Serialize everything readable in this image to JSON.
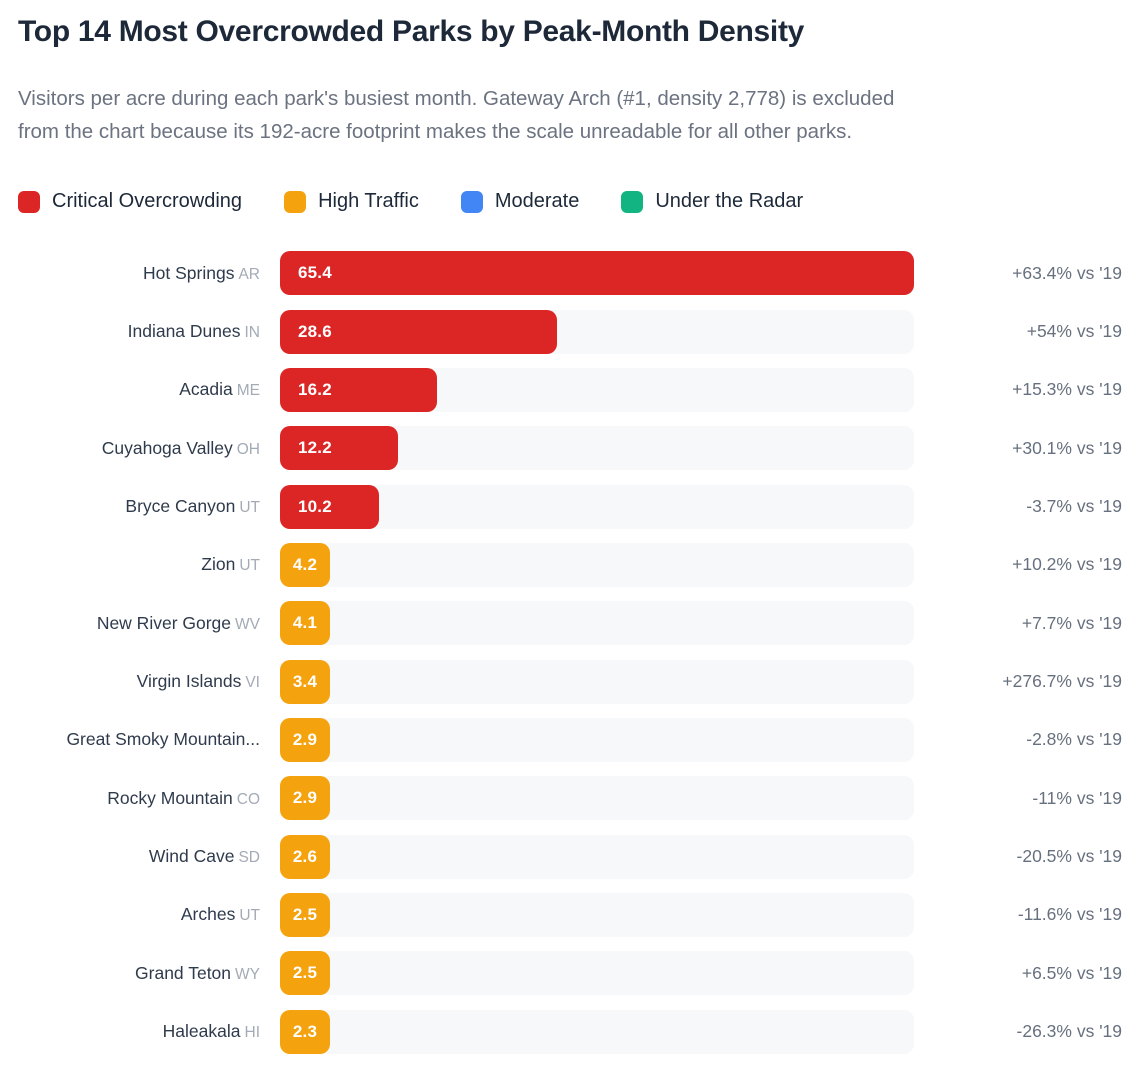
{
  "header": {
    "title": "Top 14 Most Overcrowded Parks by Peak-Month Density",
    "subtitle_line1": "Visitors per acre during each park's busiest month. Gateway Arch (#1, density 2,778) is excluded",
    "subtitle_line2": "from the chart because its 192-acre footprint makes the scale unreadable for all other parks."
  },
  "legend": [
    {
      "label": "Critical Overcrowding",
      "color": "#dc2626"
    },
    {
      "label": "High Traffic",
      "color": "#f4a20d"
    },
    {
      "label": "Moderate",
      "color": "#4285f4"
    },
    {
      "label": "Under the Radar",
      "color": "#12b581"
    }
  ],
  "chart_data": {
    "type": "bar",
    "orientation": "horizontal",
    "title": "Top 14 Most Overcrowded Parks by Peak-Month Density",
    "value_unit": "visitors per acre during peak month",
    "xlim": [
      0,
      65.4
    ],
    "grid": false,
    "category_colors": {
      "critical": "#dc2626",
      "high": "#f4a20d",
      "moderate": "#4285f4",
      "under_radar": "#12b581"
    },
    "rows": [
      {
        "park": "Hot Springs",
        "state": "AR",
        "value": 65.4,
        "change": "+63.4% vs '19",
        "category": "critical"
      },
      {
        "park": "Indiana Dunes",
        "state": "IN",
        "value": 28.6,
        "change": "+54% vs '19",
        "category": "critical"
      },
      {
        "park": "Acadia",
        "state": "ME",
        "value": 16.2,
        "change": "+15.3% vs '19",
        "category": "critical"
      },
      {
        "park": "Cuyahoga Valley",
        "state": "OH",
        "value": 12.2,
        "change": "+30.1% vs '19",
        "category": "critical"
      },
      {
        "park": "Bryce Canyon",
        "state": "UT",
        "value": 10.2,
        "change": "-3.7% vs '19",
        "category": "critical"
      },
      {
        "park": "Zion",
        "state": "UT",
        "value": 4.2,
        "change": "+10.2% vs '19",
        "category": "high"
      },
      {
        "park": "New River Gorge",
        "state": "WV",
        "value": 4.1,
        "change": "+7.7% vs '19",
        "category": "high"
      },
      {
        "park": "Virgin Islands",
        "state": "VI",
        "value": 3.4,
        "change": "+276.7% vs '19",
        "category": "high"
      },
      {
        "park": "Great Smoky Mountain...",
        "state": "",
        "value": 2.9,
        "change": "-2.8% vs '19",
        "category": "high"
      },
      {
        "park": "Rocky Mountain",
        "state": "CO",
        "value": 2.9,
        "change": "-11% vs '19",
        "category": "high"
      },
      {
        "park": "Wind Cave",
        "state": "SD",
        "value": 2.6,
        "change": "-20.5% vs '19",
        "category": "high"
      },
      {
        "park": "Arches",
        "state": "UT",
        "value": 2.5,
        "change": "-11.6% vs '19",
        "category": "high"
      },
      {
        "park": "Grand Teton",
        "state": "WY",
        "value": 2.5,
        "change": "+6.5% vs '19",
        "category": "high"
      },
      {
        "park": "Haleakala",
        "state": "HI",
        "value": 2.3,
        "change": "-26.3% vs '19",
        "category": "high"
      }
    ]
  }
}
